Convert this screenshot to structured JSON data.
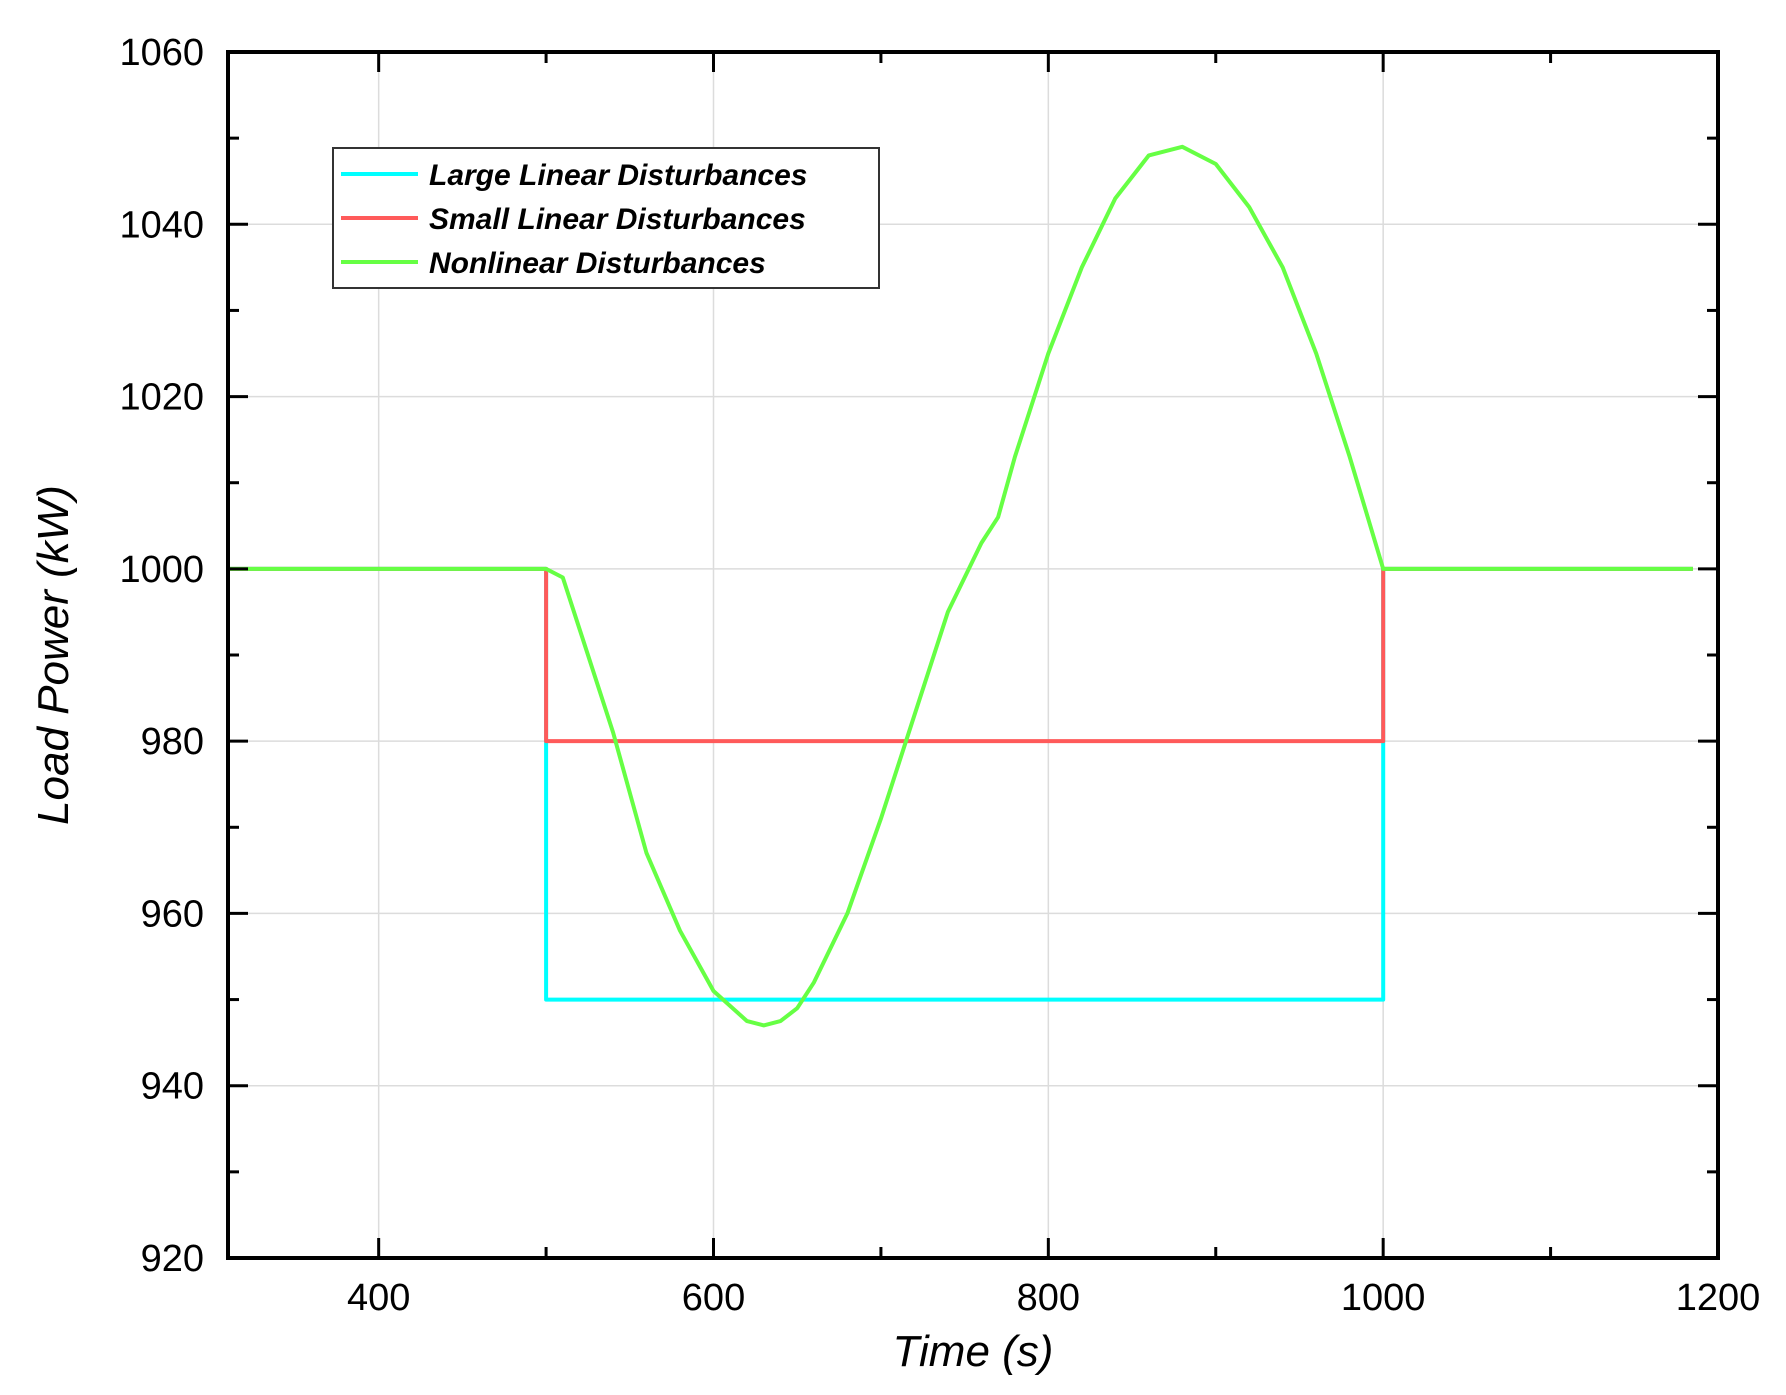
{
  "chart_data": {
    "type": "line",
    "title": "",
    "xlabel": "Time (s)",
    "ylabel": "Load Power (kW)",
    "xlim": [
      310,
      1200
    ],
    "ylim": [
      920,
      1060
    ],
    "xticks": [
      400,
      600,
      800,
      1000,
      1200
    ],
    "xticks_minor": [
      500,
      700,
      900,
      1100
    ],
    "yticks": [
      920,
      940,
      960,
      980,
      1000,
      1020,
      1040,
      1060
    ],
    "yticks_minor": [
      930,
      950,
      970,
      990,
      1010,
      1030,
      1050
    ],
    "grid": true,
    "legend": "top-left",
    "series": [
      {
        "name": "Large Linear Disturbances",
        "color": "#00ffff",
        "points": [
          [
            310,
            1000
          ],
          [
            500,
            1000
          ],
          [
            500,
            950
          ],
          [
            1000,
            950
          ],
          [
            1000,
            1000
          ],
          [
            1185,
            1000
          ]
        ]
      },
      {
        "name": "Small Linear Disturbances",
        "color": "#ff5a5a",
        "points": [
          [
            310,
            1000
          ],
          [
            500,
            1000
          ],
          [
            500,
            980
          ],
          [
            1000,
            980
          ],
          [
            1000,
            1000
          ],
          [
            1185,
            1000
          ]
        ]
      },
      {
        "name": "Nonlinear Disturbances",
        "color": "#66ff44",
        "points": [
          [
            310,
            1000
          ],
          [
            500,
            1000
          ],
          [
            510,
            999
          ],
          [
            520,
            993
          ],
          [
            540,
            981
          ],
          [
            560,
            967
          ],
          [
            580,
            958
          ],
          [
            600,
            951
          ],
          [
            620,
            947.5
          ],
          [
            630,
            947
          ],
          [
            640,
            947.5
          ],
          [
            650,
            949
          ],
          [
            660,
            952
          ],
          [
            680,
            960
          ],
          [
            700,
            971
          ],
          [
            720,
            983
          ],
          [
            740,
            995
          ],
          [
            760,
            1003
          ],
          [
            770,
            1006
          ],
          [
            780,
            1013
          ],
          [
            800,
            1025
          ],
          [
            820,
            1035
          ],
          [
            840,
            1043
          ],
          [
            860,
            1048
          ],
          [
            880,
            1049
          ],
          [
            900,
            1047
          ],
          [
            920,
            1042
          ],
          [
            940,
            1035
          ],
          [
            960,
            1025
          ],
          [
            980,
            1013
          ],
          [
            1000,
            1000
          ],
          [
            1185,
            1000
          ]
        ]
      }
    ]
  }
}
